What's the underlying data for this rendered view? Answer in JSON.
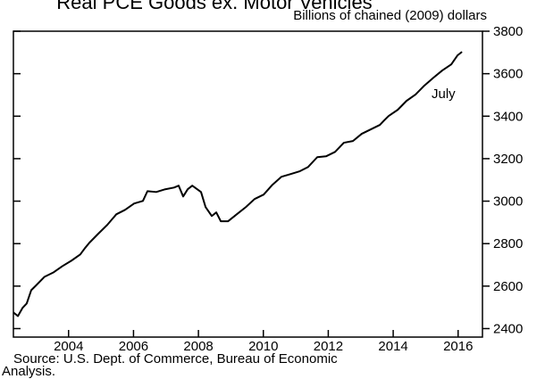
{
  "chart_data": {
    "type": "line",
    "title": "Real PCE Goods ex. Motor Vehicles",
    "subtitle": "Billions of chained (2009) dollars",
    "annotation": "July",
    "source": [
      "Source:  U.S. Dept. of Commerce, Bureau of Economic",
      "Analysis."
    ],
    "x": [
      2002.3,
      2002.44,
      2002.58,
      2002.71,
      2002.85,
      2002.99,
      2003.26,
      2003.54,
      2003.81,
      2004.09,
      2004.36,
      2004.5,
      2004.64,
      2004.91,
      2005.19,
      2005.47,
      2005.74,
      2006.02,
      2006.29,
      2006.43,
      2006.7,
      2006.98,
      2007.25,
      2007.39,
      2007.53,
      2007.67,
      2007.81,
      2008.08,
      2008.22,
      2008.41,
      2008.55,
      2008.69,
      2008.91,
      2009.18,
      2009.46,
      2009.73,
      2010.01,
      2010.28,
      2010.56,
      2010.83,
      2011.11,
      2011.38,
      2011.66,
      2011.93,
      2012.21,
      2012.48,
      2012.76,
      2013.03,
      2013.31,
      2013.59,
      2013.72,
      2013.86,
      2014.14,
      2014.41,
      2014.69,
      2014.96,
      2015.24,
      2015.51,
      2015.79,
      2015.98,
      2016.12
    ],
    "series": [
      {
        "color": "#000000",
        "values": [
          2476,
          2459,
          2497,
          2518,
          2581,
          2602,
          2644,
          2665,
          2694,
          2720,
          2749,
          2778,
          2804,
          2846,
          2888,
          2938,
          2959,
          2989,
          3001,
          3047,
          3043,
          3056,
          3064,
          3073,
          3022,
          3056,
          3073,
          3043,
          2972,
          2930,
          2947,
          2905,
          2905,
          2938,
          2972,
          3010,
          3031,
          3077,
          3115,
          3127,
          3140,
          3161,
          3207,
          3211,
          3232,
          3275,
          3283,
          3317,
          3338,
          3359,
          3380,
          3401,
          3430,
          3472,
          3502,
          3544,
          3581,
          3615,
          3644,
          3686,
          3703
        ]
      }
    ],
    "xlim": [
      2002.3,
      2016.75
    ],
    "xticks": [
      2004,
      2006,
      2008,
      2010,
      2012,
      2014,
      2016
    ],
    "ylim": [
      2360,
      3800
    ],
    "yticks": [
      2400,
      2600,
      2800,
      3000,
      3200,
      3400,
      3600,
      3800
    ]
  }
}
